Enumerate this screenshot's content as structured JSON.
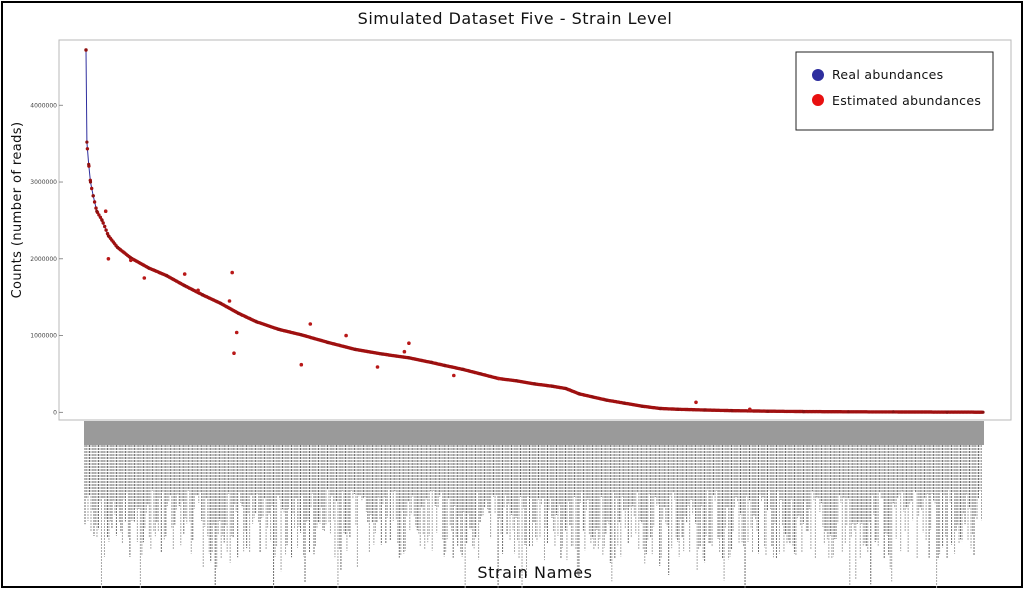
{
  "chart_data": {
    "type": "scatter",
    "title": "Simulated Dataset Five - Strain Level",
    "xlabel": "Strain Names",
    "ylabel": "Counts (number of reads)",
    "ylim": [
      -100000,
      4850000
    ],
    "yticks": [
      0,
      1000000,
      2000000,
      3000000,
      4000000
    ],
    "ytick_labels": [
      "0",
      "1000000",
      "2000000",
      "3000000",
      "4000000"
    ],
    "n_strains": 600,
    "grid": false,
    "legend_position": "top-right",
    "x_tick_labels_note": "strain names (illegible, rotated 90°)",
    "series": [
      {
        "name": "Real abundances",
        "color": "#2e2e9e",
        "style": "line+markers",
        "points": [
          [
            0,
            4720000
          ],
          [
            1,
            3520000
          ],
          [
            3,
            3230000
          ],
          [
            5,
            3000000
          ],
          [
            8,
            2820000
          ],
          [
            12,
            2620000
          ],
          [
            18,
            2500000
          ],
          [
            25,
            2300000
          ],
          [
            35,
            2150000
          ],
          [
            50,
            2010000
          ],
          [
            70,
            1880000
          ],
          [
            90,
            1780000
          ],
          [
            110,
            1650000
          ],
          [
            130,
            1530000
          ],
          [
            150,
            1420000
          ],
          [
            170,
            1290000
          ],
          [
            190,
            1180000
          ],
          [
            215,
            1080000
          ],
          [
            240,
            1010000
          ],
          [
            270,
            910000
          ],
          [
            300,
            820000
          ],
          [
            330,
            760000
          ],
          [
            360,
            710000
          ],
          [
            385,
            650000
          ],
          [
            400,
            610000
          ],
          [
            420,
            560000
          ],
          [
            440,
            500000
          ],
          [
            460,
            440000
          ],
          [
            480,
            410000
          ],
          [
            500,
            370000
          ],
          [
            520,
            340000
          ],
          [
            535,
            310000
          ],
          [
            550,
            240000
          ],
          [
            565,
            200000
          ],
          [
            580,
            160000
          ],
          [
            600,
            120000
          ],
          [
            620,
            80000
          ],
          [
            640,
            50000
          ],
          [
            660,
            40000
          ],
          [
            690,
            30000
          ],
          [
            720,
            22000
          ],
          [
            760,
            15000
          ],
          [
            800,
            10000
          ],
          [
            850,
            7000
          ],
          [
            900,
            5000
          ],
          [
            960,
            3000
          ],
          [
            1000,
            2000
          ]
        ]
      },
      {
        "name": "Estimated abundances",
        "color": "#e81010",
        "style": "markers",
        "outliers": [
          [
            25,
            2000000
          ],
          [
            22,
            2620000
          ],
          [
            110,
            1800000
          ],
          [
            160,
            1450000
          ],
          [
            163,
            1820000
          ],
          [
            168,
            1040000
          ],
          [
            165,
            770000
          ],
          [
            240,
            620000
          ],
          [
            250,
            1150000
          ],
          [
            290,
            1000000
          ],
          [
            325,
            590000
          ],
          [
            355,
            790000
          ],
          [
            360,
            900000
          ],
          [
            410,
            480000
          ],
          [
            460,
            440000
          ],
          [
            680,
            130000
          ],
          [
            740,
            40000
          ],
          [
            50,
            1980000
          ],
          [
            65,
            1750000
          ],
          [
            125,
            1590000
          ]
        ]
      }
    ]
  }
}
